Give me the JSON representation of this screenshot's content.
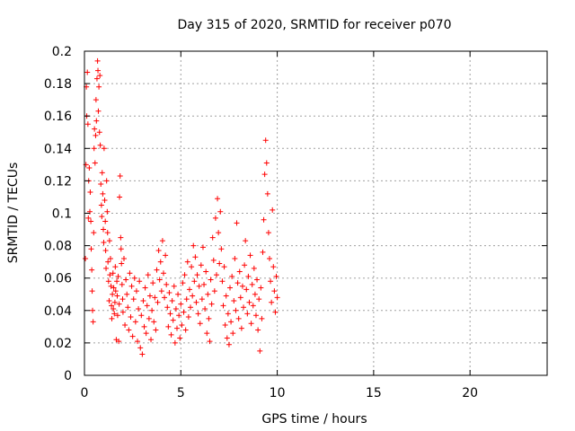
{
  "chart_data": {
    "type": "scatter",
    "title": "Day 315 of 2020, SRMTID for receiver p070",
    "xlabel": "GPS time / hours",
    "ylabel": "SRMTID / TECUs",
    "xlim": [
      0,
      24
    ],
    "ylim": [
      0,
      0.2
    ],
    "xticks": [
      0,
      5,
      10,
      15,
      20
    ],
    "xtick_labels": [
      "0",
      "5",
      "10",
      "15",
      "20"
    ],
    "yticks": [
      0,
      0.02,
      0.04,
      0.06,
      0.08,
      0.1,
      0.12,
      0.14,
      0.16,
      0.18,
      0.2
    ],
    "ytick_labels": [
      "0",
      "0.02",
      "0.04",
      "0.06",
      "0.08",
      "0.1",
      "0.12",
      "0.14",
      "0.16",
      "0.18",
      "0.2"
    ],
    "grid": true,
    "marker": "+",
    "color": "#ff0000",
    "series": [
      {
        "name": "SRMTID",
        "points": [
          [
            0.05,
            0.072
          ],
          [
            0.08,
            0.13
          ],
          [
            0.1,
            0.178
          ],
          [
            0.12,
            0.16
          ],
          [
            0.15,
            0.187
          ],
          [
            0.18,
            0.155
          ],
          [
            0.2,
            0.097
          ],
          [
            0.22,
            0.12
          ],
          [
            0.25,
            0.128
          ],
          [
            0.28,
            0.101
          ],
          [
            0.3,
            0.113
          ],
          [
            0.33,
            0.095
          ],
          [
            0.35,
            0.078
          ],
          [
            0.38,
            0.065
          ],
          [
            0.4,
            0.052
          ],
          [
            0.42,
            0.04
          ],
          [
            0.45,
            0.033
          ],
          [
            0.48,
            0.088
          ],
          [
            0.5,
            0.14
          ],
          [
            0.52,
            0.152
          ],
          [
            0.55,
            0.131
          ],
          [
            0.58,
            0.148
          ],
          [
            0.6,
            0.17
          ],
          [
            0.62,
            0.157
          ],
          [
            0.65,
            0.183
          ],
          [
            0.68,
            0.194
          ],
          [
            0.7,
            0.188
          ],
          [
            0.72,
            0.163
          ],
          [
            0.75,
            0.178
          ],
          [
            0.78,
            0.15
          ],
          [
            0.8,
            0.185
          ],
          [
            0.82,
            0.142
          ],
          [
            0.85,
            0.118
          ],
          [
            0.88,
            0.105
          ],
          [
            0.9,
            0.098
          ],
          [
            0.92,
            0.125
          ],
          [
            0.95,
            0.112
          ],
          [
            0.98,
            0.09
          ],
          [
            1.0,
            0.082
          ],
          [
            1.02,
            0.14
          ],
          [
            1.05,
            0.108
          ],
          [
            1.08,
            0.095
          ],
          [
            1.1,
            0.077
          ],
          [
            1.12,
            0.066
          ],
          [
            1.15,
            0.12
          ],
          [
            1.18,
            0.101
          ],
          [
            1.2,
            0.088
          ],
          [
            1.22,
            0.07
          ],
          [
            1.25,
            0.058
          ],
          [
            1.28,
            0.046
          ],
          [
            1.3,
            0.083
          ],
          [
            1.32,
            0.062
          ],
          [
            1.35,
            0.072
          ],
          [
            1.38,
            0.055
          ],
          [
            1.4,
            0.043
          ],
          [
            1.42,
            0.035
          ],
          [
            1.45,
            0.05
          ],
          [
            1.48,
            0.063
          ],
          [
            1.5,
            0.041
          ],
          [
            1.52,
            0.054
          ],
          [
            1.55,
            0.038
          ],
          [
            1.58,
            0.045
          ],
          [
            1.6,
            0.067
          ],
          [
            1.62,
            0.052
          ],
          [
            1.65,
            0.022
          ],
          [
            1.68,
            0.058
          ],
          [
            1.7,
            0.049
          ],
          [
            1.72,
            0.037
          ],
          [
            1.75,
            0.061
          ],
          [
            1.78,
            0.021
          ],
          [
            1.8,
            0.044
          ],
          [
            1.82,
            0.11
          ],
          [
            1.85,
            0.123
          ],
          [
            1.88,
            0.085
          ],
          [
            1.9,
            0.078
          ],
          [
            1.92,
            0.069
          ],
          [
            1.95,
            0.056
          ],
          [
            1.98,
            0.047
          ],
          [
            2.0,
            0.039
          ],
          [
            2.05,
            0.072
          ],
          [
            2.1,
            0.031
          ],
          [
            2.15,
            0.059
          ],
          [
            2.2,
            0.05
          ],
          [
            2.25,
            0.042
          ],
          [
            2.3,
            0.028
          ],
          [
            2.35,
            0.063
          ],
          [
            2.4,
            0.036
          ],
          [
            2.45,
            0.055
          ],
          [
            2.5,
            0.024
          ],
          [
            2.55,
            0.047
          ],
          [
            2.6,
            0.06
          ],
          [
            2.65,
            0.033
          ],
          [
            2.7,
            0.052
          ],
          [
            2.75,
            0.021
          ],
          [
            2.8,
            0.041
          ],
          [
            2.85,
            0.058
          ],
          [
            2.9,
            0.017
          ],
          [
            2.95,
            0.037
          ],
          [
            3.0,
            0.013
          ],
          [
            3.05,
            0.046
          ],
          [
            3.1,
            0.03
          ],
          [
            3.15,
            0.054
          ],
          [
            3.2,
            0.026
          ],
          [
            3.25,
            0.043
          ],
          [
            3.3,
            0.062
          ],
          [
            3.35,
            0.035
          ],
          [
            3.4,
            0.049
          ],
          [
            3.45,
            0.022
          ],
          [
            3.5,
            0.04
          ],
          [
            3.55,
            0.057
          ],
          [
            3.6,
            0.033
          ],
          [
            3.65,
            0.048
          ],
          [
            3.7,
            0.028
          ],
          [
            3.75,
            0.065
          ],
          [
            3.8,
            0.045
          ],
          [
            3.85,
            0.077
          ],
          [
            3.9,
            0.059
          ],
          [
            3.95,
            0.07
          ],
          [
            4.0,
            0.052
          ],
          [
            4.05,
            0.083
          ],
          [
            4.1,
            0.063
          ],
          [
            4.15,
            0.048
          ],
          [
            4.2,
            0.074
          ],
          [
            4.25,
            0.056
          ],
          [
            4.3,
            0.042
          ],
          [
            4.35,
            0.03
          ],
          [
            4.4,
            0.051
          ],
          [
            4.45,
            0.038
          ],
          [
            4.5,
            0.025
          ],
          [
            4.55,
            0.046
          ],
          [
            4.6,
            0.034
          ],
          [
            4.65,
            0.055
          ],
          [
            4.7,
            0.02
          ],
          [
            4.75,
            0.041
          ],
          [
            4.8,
            0.029
          ],
          [
            4.85,
            0.05
          ],
          [
            4.9,
            0.037
          ],
          [
            4.95,
            0.023
          ],
          [
            5.0,
            0.044
          ],
          [
            5.05,
            0.031
          ],
          [
            5.1,
            0.057
          ],
          [
            5.15,
            0.039
          ],
          [
            5.2,
            0.062
          ],
          [
            5.25,
            0.028
          ],
          [
            5.3,
            0.047
          ],
          [
            5.35,
            0.07
          ],
          [
            5.4,
            0.036
          ],
          [
            5.45,
            0.053
          ],
          [
            5.5,
            0.042
          ],
          [
            5.55,
            0.067
          ],
          [
            5.6,
            0.049
          ],
          [
            5.65,
            0.08
          ],
          [
            5.7,
            0.058
          ],
          [
            5.75,
            0.073
          ],
          [
            5.8,
            0.045
          ],
          [
            5.85,
            0.062
          ],
          [
            5.9,
            0.038
          ],
          [
            5.95,
            0.055
          ],
          [
            6.0,
            0.032
          ],
          [
            6.05,
            0.068
          ],
          [
            6.1,
            0.047
          ],
          [
            6.15,
            0.079
          ],
          [
            6.2,
            0.056
          ],
          [
            6.25,
            0.041
          ],
          [
            6.3,
            0.064
          ],
          [
            6.35,
            0.026
          ],
          [
            6.4,
            0.05
          ],
          [
            6.45,
            0.035
          ],
          [
            6.5,
            0.021
          ],
          [
            6.55,
            0.059
          ],
          [
            6.6,
            0.044
          ],
          [
            6.65,
            0.085
          ],
          [
            6.7,
            0.071
          ],
          [
            6.75,
            0.052
          ],
          [
            6.8,
            0.097
          ],
          [
            6.85,
            0.062
          ],
          [
            6.9,
            0.109
          ],
          [
            6.95,
            0.088
          ],
          [
            7.0,
            0.069
          ],
          [
            7.05,
            0.101
          ],
          [
            7.1,
            0.078
          ],
          [
            7.15,
            0.058
          ],
          [
            7.2,
            0.043
          ],
          [
            7.25,
            0.067
          ],
          [
            7.3,
            0.031
          ],
          [
            7.35,
            0.049
          ],
          [
            7.4,
            0.023
          ],
          [
            7.45,
            0.038
          ],
          [
            7.5,
            0.019
          ],
          [
            7.55,
            0.054
          ],
          [
            7.6,
            0.033
          ],
          [
            7.65,
            0.061
          ],
          [
            7.7,
            0.026
          ],
          [
            7.75,
            0.046
          ],
          [
            7.8,
            0.072
          ],
          [
            7.85,
            0.04
          ],
          [
            7.9,
            0.094
          ],
          [
            7.95,
            0.057
          ],
          [
            8.0,
            0.035
          ],
          [
            8.05,
            0.064
          ],
          [
            8.1,
            0.048
          ],
          [
            8.15,
            0.029
          ],
          [
            8.2,
            0.055
          ],
          [
            8.25,
            0.042
          ],
          [
            8.3,
            0.068
          ],
          [
            8.35,
            0.083
          ],
          [
            8.4,
            0.053
          ],
          [
            8.45,
            0.038
          ],
          [
            8.5,
            0.061
          ],
          [
            8.55,
            0.045
          ],
          [
            8.6,
            0.074
          ],
          [
            8.65,
            0.032
          ],
          [
            8.7,
            0.056
          ],
          [
            8.75,
            0.043
          ],
          [
            8.8,
            0.066
          ],
          [
            8.85,
            0.05
          ],
          [
            8.9,
            0.037
          ],
          [
            8.95,
            0.059
          ],
          [
            9.0,
            0.028
          ],
          [
            9.05,
            0.047
          ],
          [
            9.1,
            0.015
          ],
          [
            9.15,
            0.054
          ],
          [
            9.2,
            0.035
          ],
          [
            9.25,
            0.076
          ],
          [
            9.3,
            0.096
          ],
          [
            9.35,
            0.124
          ],
          [
            9.4,
            0.145
          ],
          [
            9.45,
            0.131
          ],
          [
            9.5,
            0.112
          ],
          [
            9.55,
            0.088
          ],
          [
            9.6,
            0.072
          ],
          [
            9.65,
            0.058
          ],
          [
            9.7,
            0.045
          ],
          [
            9.75,
            0.102
          ],
          [
            9.8,
            0.067
          ],
          [
            9.85,
            0.052
          ],
          [
            9.9,
            0.039
          ],
          [
            9.95,
            0.061
          ],
          [
            10.0,
            0.048
          ]
        ]
      }
    ]
  }
}
